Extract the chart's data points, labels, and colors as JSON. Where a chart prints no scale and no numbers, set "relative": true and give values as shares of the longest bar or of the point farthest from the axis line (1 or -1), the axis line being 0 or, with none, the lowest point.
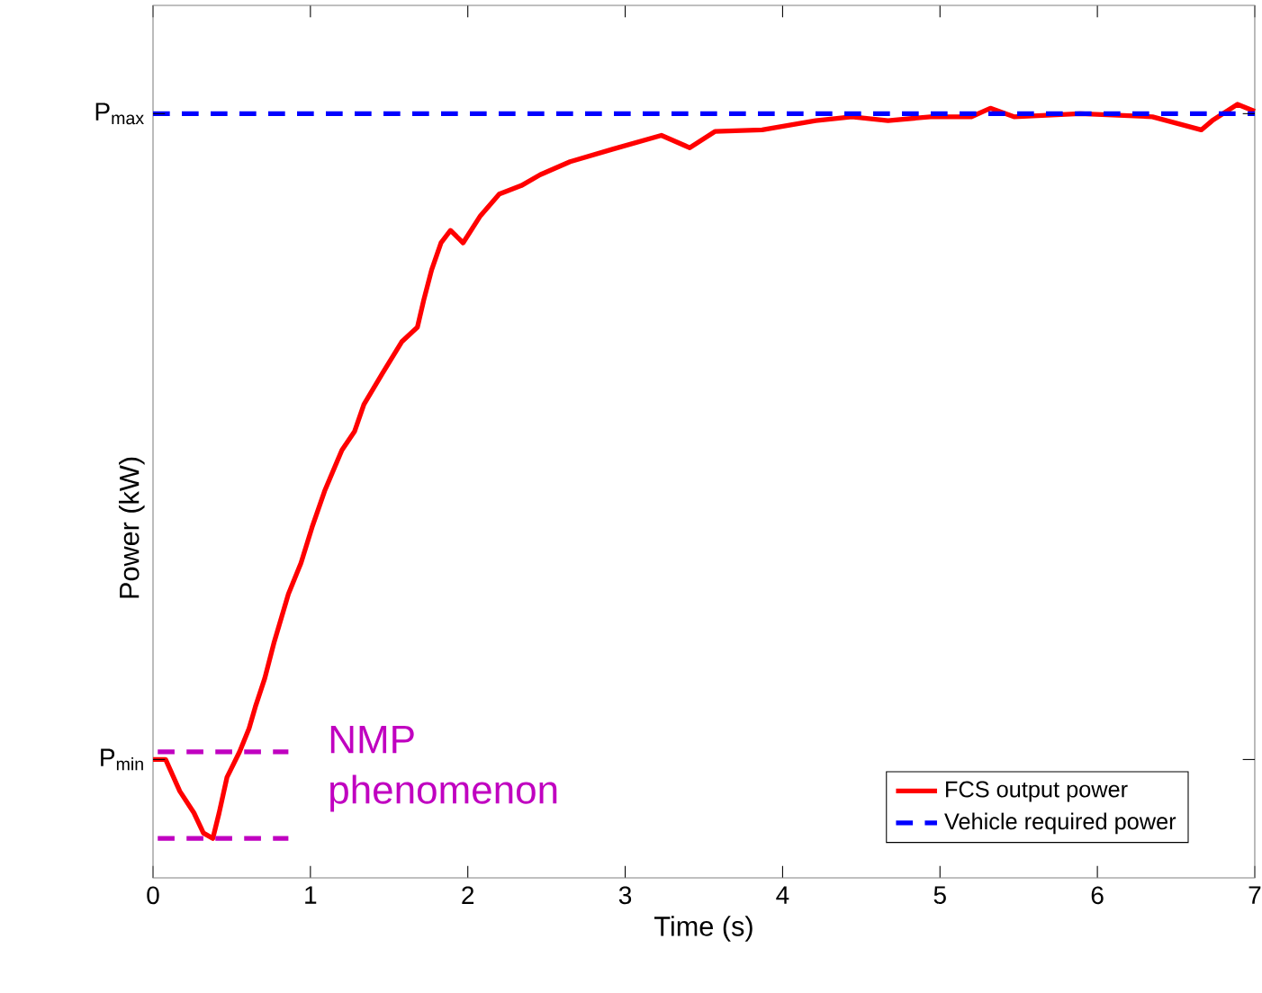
{
  "chart_data": {
    "type": "line",
    "xlabel": "Time (s)",
    "ylabel": "Power (kW)",
    "relative": true,
    "xlim": [
      0,
      7
    ],
    "xticks": [
      0,
      1,
      2,
      3,
      4,
      5,
      6,
      7
    ],
    "ref_lines": [
      {
        "axis": "y",
        "value": 0.153,
        "label": "P$_{min}$"
      },
      {
        "axis": "y",
        "value": 0.988,
        "label": "P$_{max}$"
      }
    ],
    "legend": "bottom right",
    "grid": false,
    "marker": "none",
    "annotations": [
      "NMP phenomenon"
    ],
    "series": [
      {
        "name": "FCS output power",
        "color": "#ff0000",
        "line_style": "solid",
        "x": [
          0,
          0.08,
          0.17,
          0.26,
          0.32,
          0.38,
          0.42,
          0.47,
          0.55,
          0.61,
          0.65,
          0.71,
          0.77,
          0.86,
          0.94,
          1.01,
          1.09,
          1.2,
          1.28,
          1.34,
          1.46,
          1.58,
          1.68,
          1.72,
          1.77,
          1.83,
          1.89,
          1.97,
          2.08,
          2.2,
          2.34,
          2.46,
          2.65,
          2.92,
          3.23,
          3.41,
          3.57,
          3.87,
          4.21,
          4.44,
          4.67,
          4.94,
          5.2,
          5.32,
          5.47,
          5.89,
          6.35,
          6.66,
          6.73,
          6.89,
          7.0
        ],
        "values": [
          0.153,
          0.153,
          0.112,
          0.084,
          0.058,
          0.051,
          0.084,
          0.13,
          0.163,
          0.193,
          0.221,
          0.258,
          0.305,
          0.367,
          0.407,
          0.453,
          0.5,
          0.553,
          0.577,
          0.612,
          0.653,
          0.693,
          0.712,
          0.747,
          0.786,
          0.821,
          0.837,
          0.821,
          0.856,
          0.884,
          0.895,
          0.909,
          0.926,
          0.942,
          0.96,
          0.944,
          0.965,
          0.967,
          0.979,
          0.984,
          0.979,
          0.984,
          0.984,
          0.995,
          0.984,
          0.988,
          0.984,
          0.967,
          0.979,
          1.0,
          0.991
        ]
      },
      {
        "name": "Vehicle required power",
        "color": "#0000ff",
        "line_style": "dashed",
        "x": [
          0,
          7
        ],
        "values": [
          0.988,
          0.988
        ]
      },
      {
        "color": "#c000c0",
        "line_style": "dashed",
        "x": [
          0.03,
          0.86
        ],
        "values": [
          0.163,
          0.163
        ]
      },
      {
        "color": "#c000c0",
        "line_style": "dashed",
        "x": [
          0.03,
          0.86
        ],
        "values": [
          0.051,
          0.051
        ]
      }
    ]
  }
}
